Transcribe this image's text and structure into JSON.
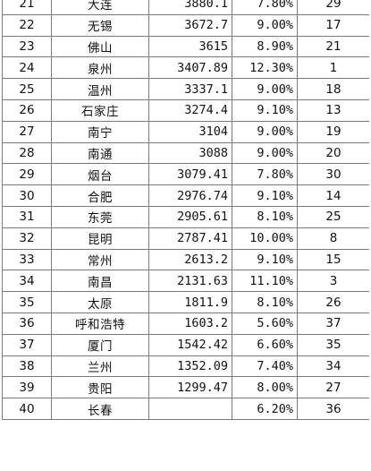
{
  "table": {
    "rows": [
      {
        "rank": "21",
        "city": "大连",
        "gdp": "3880.1",
        "growth": "7.80%",
        "growth_rank": "29"
      },
      {
        "rank": "22",
        "city": "无锡",
        "gdp": "3672.7",
        "growth": "9.00%",
        "growth_rank": "17"
      },
      {
        "rank": "23",
        "city": "佛山",
        "gdp": "3615",
        "growth": "8.90%",
        "growth_rank": "21"
      },
      {
        "rank": "24",
        "city": "泉州",
        "gdp": "3407.89",
        "growth": "12.30%",
        "growth_rank": "1"
      },
      {
        "rank": "25",
        "city": "温州",
        "gdp": "3337.1",
        "growth": "9.00%",
        "growth_rank": "18"
      },
      {
        "rank": "26",
        "city": "石家庄",
        "gdp": "3274.4",
        "growth": "9.10%",
        "growth_rank": "13"
      },
      {
        "rank": "27",
        "city": "南宁",
        "gdp": "3104",
        "growth": "9.00%",
        "growth_rank": "19"
      },
      {
        "rank": "28",
        "city": "南通",
        "gdp": "3088",
        "growth": "9.00%",
        "growth_rank": "20"
      },
      {
        "rank": "29",
        "city": "烟台",
        "gdp": "3079.41",
        "growth": "7.80%",
        "growth_rank": "30"
      },
      {
        "rank": "30",
        "city": "合肥",
        "gdp": "2976.74",
        "growth": "9.10%",
        "growth_rank": "14"
      },
      {
        "rank": "31",
        "city": "东莞",
        "gdp": "2905.61",
        "growth": "8.10%",
        "growth_rank": "25"
      },
      {
        "rank": "32",
        "city": "昆明",
        "gdp": "2787.41",
        "growth": "10.00%",
        "growth_rank": "8"
      },
      {
        "rank": "33",
        "city": "常州",
        "gdp": "2613.2",
        "growth": "9.10%",
        "growth_rank": "15"
      },
      {
        "rank": "34",
        "city": "南昌",
        "gdp": "2131.63",
        "growth": "11.10%",
        "growth_rank": "3"
      },
      {
        "rank": "35",
        "city": "太原",
        "gdp": "1811.9",
        "growth": "8.10%",
        "growth_rank": "26"
      },
      {
        "rank": "36",
        "city": "呼和浩特",
        "gdp": "1603.2",
        "growth": "5.60%",
        "growth_rank": "37"
      },
      {
        "rank": "37",
        "city": "厦门",
        "gdp": "1542.42",
        "growth": "6.60%",
        "growth_rank": "35"
      },
      {
        "rank": "38",
        "city": "兰州",
        "gdp": "1352.09",
        "growth": "7.40%",
        "growth_rank": "34"
      },
      {
        "rank": "39",
        "city": "贵阳",
        "gdp": "1299.47",
        "growth": "8.00%",
        "growth_rank": "27"
      },
      {
        "rank": "40",
        "city": "长春",
        "gdp": "",
        "growth": "6.20%",
        "growth_rank": "36"
      }
    ]
  }
}
